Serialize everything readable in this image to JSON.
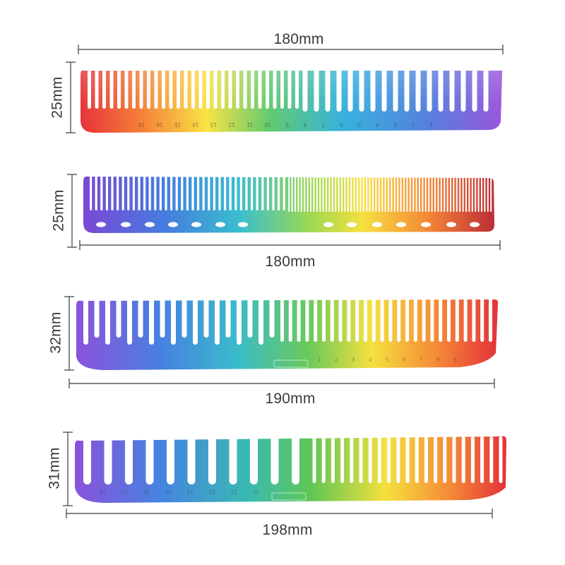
{
  "combs": [
    {
      "length": "180mm",
      "height": "25mm"
    },
    {
      "length": "180mm",
      "height": "25mm"
    },
    {
      "length": "190mm",
      "height": "32mm"
    },
    {
      "length": "198mm",
      "height": "31mm"
    }
  ],
  "comb1_scale": [
    "18",
    "16",
    "15",
    "14",
    "13",
    "12",
    "11",
    "10",
    "9",
    "8",
    "7",
    "6",
    "5",
    "4",
    "3",
    "2",
    "1"
  ],
  "comb3_scale": [
    "1",
    "2",
    "3",
    "4",
    "5",
    "6",
    "7",
    "8",
    "9"
  ],
  "comb4_scale": [
    "18",
    "17",
    "16",
    "15",
    "14",
    "13",
    "12",
    "11"
  ]
}
